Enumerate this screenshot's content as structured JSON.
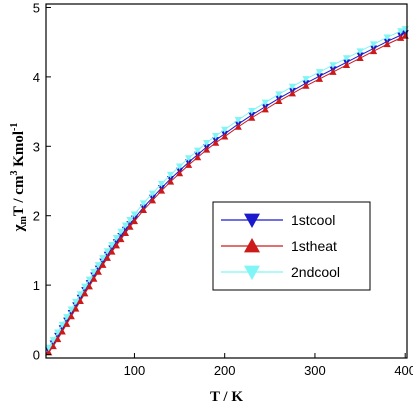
{
  "chart_data": {
    "type": "scatter",
    "xlabel": "T / K",
    "ylabel": {
      "main": "χ",
      "sub": "m",
      "mid": "T / cm",
      "sup1": "3",
      "end": " Kmol",
      "sup2": "-1"
    },
    "xlim": [
      2,
      402
    ],
    "ylim": [
      -0.05,
      5.05
    ],
    "xticks": [
      100,
      200,
      300,
      400
    ],
    "yticks": [
      0,
      1,
      2,
      3,
      4,
      5
    ],
    "grid": false,
    "legend_position": "lower-right",
    "series": [
      {
        "name": "1stcool",
        "color": "#1a1acc",
        "marker": "triangle-down",
        "x": [
          5,
          10,
          15,
          20,
          25,
          30,
          35,
          40,
          45,
          50,
          55,
          60,
          65,
          70,
          75,
          80,
          85,
          90,
          95,
          100,
          110,
          120,
          130,
          140,
          150,
          160,
          170,
          180,
          190,
          200,
          215,
          230,
          245,
          260,
          275,
          290,
          305,
          320,
          335,
          350,
          365,
          380,
          395,
          400
        ],
        "y": [
          0.06,
          0.16,
          0.27,
          0.38,
          0.49,
          0.6,
          0.71,
          0.82,
          0.93,
          1.03,
          1.14,
          1.24,
          1.34,
          1.44,
          1.53,
          1.62,
          1.71,
          1.8,
          1.88,
          1.96,
          2.12,
          2.26,
          2.4,
          2.53,
          2.65,
          2.77,
          2.88,
          2.99,
          3.09,
          3.18,
          3.32,
          3.45,
          3.57,
          3.69,
          3.8,
          3.91,
          4.01,
          4.11,
          4.21,
          4.31,
          4.41,
          4.51,
          4.6,
          4.63
        ]
      },
      {
        "name": "1stheat",
        "color": "#cc1a1a",
        "marker": "triangle-up",
        "x": [
          5,
          10,
          15,
          20,
          25,
          30,
          35,
          40,
          45,
          50,
          55,
          60,
          65,
          70,
          75,
          80,
          85,
          90,
          95,
          100,
          110,
          120,
          130,
          140,
          150,
          160,
          170,
          180,
          190,
          200,
          215,
          230,
          245,
          260,
          275,
          290,
          305,
          320,
          335,
          350,
          365,
          380,
          395,
          400
        ],
        "y": [
          0.03,
          0.12,
          0.22,
          0.33,
          0.44,
          0.55,
          0.66,
          0.77,
          0.88,
          0.98,
          1.09,
          1.19,
          1.29,
          1.39,
          1.48,
          1.57,
          1.66,
          1.75,
          1.84,
          1.92,
          2.08,
          2.22,
          2.36,
          2.49,
          2.61,
          2.73,
          2.84,
          2.95,
          3.05,
          3.14,
          3.28,
          3.41,
          3.53,
          3.65,
          3.76,
          3.87,
          3.97,
          4.07,
          4.17,
          4.27,
          4.37,
          4.47,
          4.56,
          4.59
        ]
      },
      {
        "name": "2ndcool",
        "color": "#7ff5f5",
        "marker": "triangle-down",
        "x": [
          5,
          10,
          15,
          20,
          25,
          30,
          35,
          40,
          45,
          50,
          55,
          60,
          65,
          70,
          75,
          80,
          85,
          90,
          95,
          100,
          110,
          120,
          130,
          140,
          150,
          160,
          170,
          180,
          190,
          200,
          215,
          230,
          245,
          260,
          275,
          290,
          305,
          320,
          335,
          350,
          365,
          380,
          395,
          400
        ],
        "y": [
          0.1,
          0.21,
          0.32,
          0.43,
          0.54,
          0.65,
          0.76,
          0.87,
          0.98,
          1.08,
          1.19,
          1.29,
          1.39,
          1.49,
          1.58,
          1.68,
          1.77,
          1.86,
          1.94,
          2.02,
          2.18,
          2.32,
          2.46,
          2.59,
          2.71,
          2.83,
          2.94,
          3.05,
          3.15,
          3.24,
          3.38,
          3.51,
          3.63,
          3.75,
          3.86,
          3.97,
          4.07,
          4.17,
          4.27,
          4.37,
          4.47,
          4.57,
          4.66,
          4.69
        ]
      }
    ]
  }
}
